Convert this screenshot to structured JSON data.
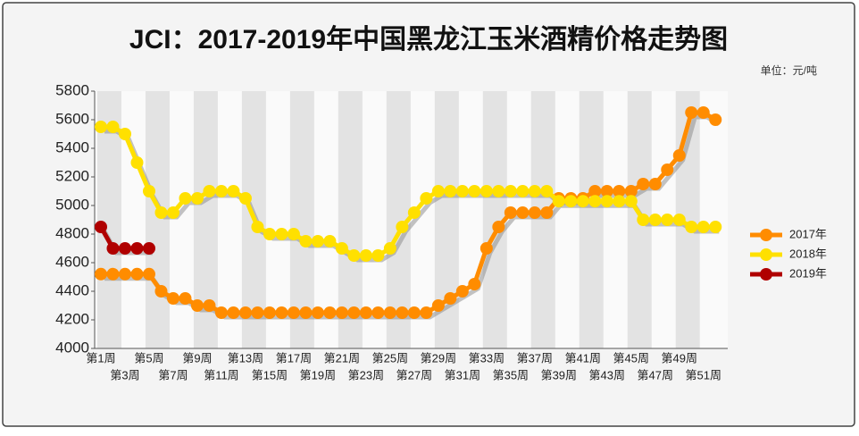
{
  "chart_data": {
    "type": "line",
    "title": "JCI：2017-2019年中国黑龙江玉米酒精价格走势图",
    "unit": "单位：元/吨",
    "categories": [
      "第1周",
      null,
      "第3周",
      null,
      "第5周",
      null,
      "第7周",
      null,
      "第9周",
      null,
      "第11周",
      null,
      "第13周",
      null,
      "第15周",
      null,
      "第17周",
      null,
      "第19周",
      null,
      "第21周",
      null,
      "第23周",
      null,
      "第25周",
      null,
      "第27周",
      null,
      "第29周",
      null,
      "第31周",
      null,
      "第33周",
      null,
      "第35周",
      null,
      "第37周",
      null,
      "第39周",
      null,
      "第41周",
      null,
      "第43周",
      null,
      "第45周",
      null,
      "第47周",
      null,
      "第49周",
      null,
      "第51周",
      null
    ],
    "series": [
      {
        "name": "2017年",
        "color": "#ff8c00",
        "values": [
          4520,
          4520,
          4520,
          4520,
          4520,
          4400,
          4350,
          4350,
          4300,
          4300,
          4250,
          4250,
          4250,
          4250,
          4250,
          4250,
          4250,
          4250,
          4250,
          4250,
          4250,
          4250,
          4250,
          4250,
          4250,
          4250,
          4250,
          4250,
          4300,
          4350,
          4400,
          4450,
          4700,
          4850,
          4950,
          4950,
          4950,
          4950,
          5050,
          5050,
          5050,
          5100,
          5100,
          5100,
          5100,
          5150,
          5150,
          5250,
          5350,
          5650,
          5650,
          5600
        ]
      },
      {
        "name": "2018年",
        "color": "#ffe000",
        "values": [
          5550,
          5550,
          5500,
          5300,
          5100,
          4950,
          4950,
          5050,
          5050,
          5100,
          5100,
          5100,
          5050,
          4850,
          4800,
          4800,
          4800,
          4750,
          4750,
          4750,
          4700,
          4650,
          4650,
          4650,
          4700,
          4850,
          4950,
          5050,
          5100,
          5100,
          5100,
          5100,
          5100,
          5100,
          5100,
          5100,
          5100,
          5100,
          5030,
          5030,
          5030,
          5030,
          5030,
          5030,
          5030,
          4900,
          4900,
          4900,
          4900,
          4850,
          4850,
          4850
        ]
      },
      {
        "name": "2019年",
        "color": "#b00000",
        "values": [
          4850,
          4700,
          4700,
          4700,
          4700,
          null,
          null,
          null,
          null,
          null,
          null,
          null,
          null,
          null,
          null,
          null,
          null,
          null,
          null,
          null,
          null,
          null,
          null,
          null,
          null,
          null,
          null,
          null,
          null,
          null,
          null,
          null,
          null,
          null,
          null,
          null,
          null,
          null,
          null,
          null,
          null,
          null,
          null,
          null,
          null,
          null,
          null,
          null,
          null,
          null,
          null,
          null
        ]
      }
    ],
    "ylim": [
      4000,
      5800
    ],
    "yticks": [
      4000,
      4200,
      4400,
      4600,
      4800,
      5000,
      5200,
      5400,
      5600,
      5800
    ]
  }
}
